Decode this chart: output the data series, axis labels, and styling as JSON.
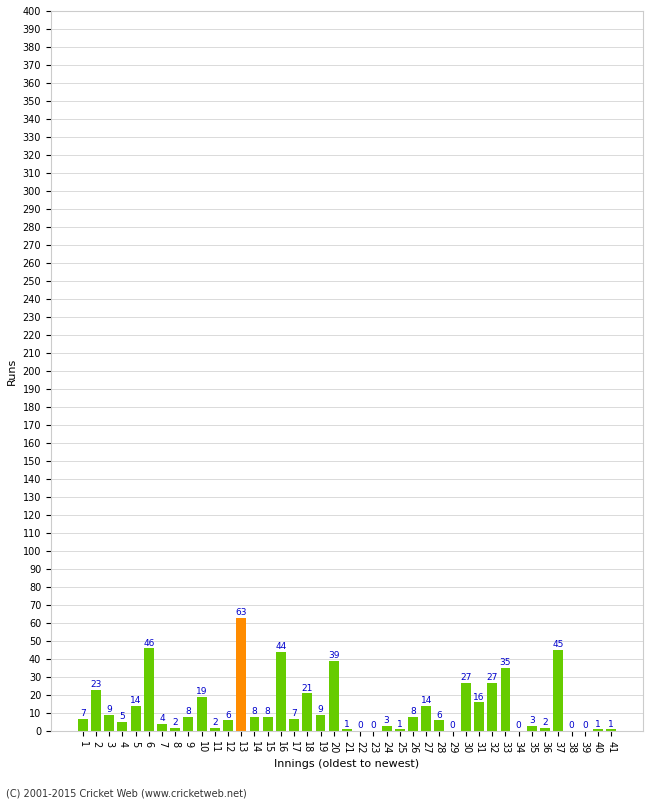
{
  "title": "",
  "xlabel": "Innings (oldest to newest)",
  "ylabel": "Runs",
  "values": [
    7,
    23,
    9,
    5,
    14,
    46,
    4,
    2,
    8,
    19,
    2,
    6,
    63,
    8,
    8,
    44,
    7,
    21,
    9,
    39,
    1,
    0,
    0,
    3,
    1,
    8,
    14,
    6,
    0,
    27,
    16,
    27,
    35,
    0,
    3,
    2,
    45,
    0,
    0,
    1,
    1
  ],
  "innings": [
    1,
    2,
    3,
    4,
    5,
    6,
    7,
    8,
    9,
    10,
    11,
    12,
    13,
    14,
    15,
    16,
    17,
    18,
    19,
    20,
    21,
    22,
    23,
    24,
    25,
    26,
    27,
    28,
    29,
    30,
    31,
    32,
    33,
    34,
    35,
    36,
    37,
    38,
    39,
    40,
    41
  ],
  "highlight_index": 12,
  "bar_color_normal": "#66cc00",
  "bar_color_highlight": "#ff8c00",
  "label_color": "#0000cc",
  "background_color": "#ffffff",
  "grid_color": "#cccccc",
  "ylim": [
    0,
    400
  ],
  "yticks": [
    0,
    10,
    20,
    30,
    40,
    50,
    60,
    70,
    80,
    90,
    100,
    110,
    120,
    130,
    140,
    150,
    160,
    170,
    180,
    190,
    200,
    210,
    220,
    230,
    240,
    250,
    260,
    270,
    280,
    290,
    300,
    310,
    320,
    330,
    340,
    350,
    360,
    370,
    380,
    390,
    400
  ],
  "footer": "(C) 2001-2015 Cricket Web (www.cricketweb.net)",
  "label_fontsize": 6.5,
  "axis_label_fontsize": 8,
  "tick_fontsize": 7,
  "ylabel_fontsize": 8
}
